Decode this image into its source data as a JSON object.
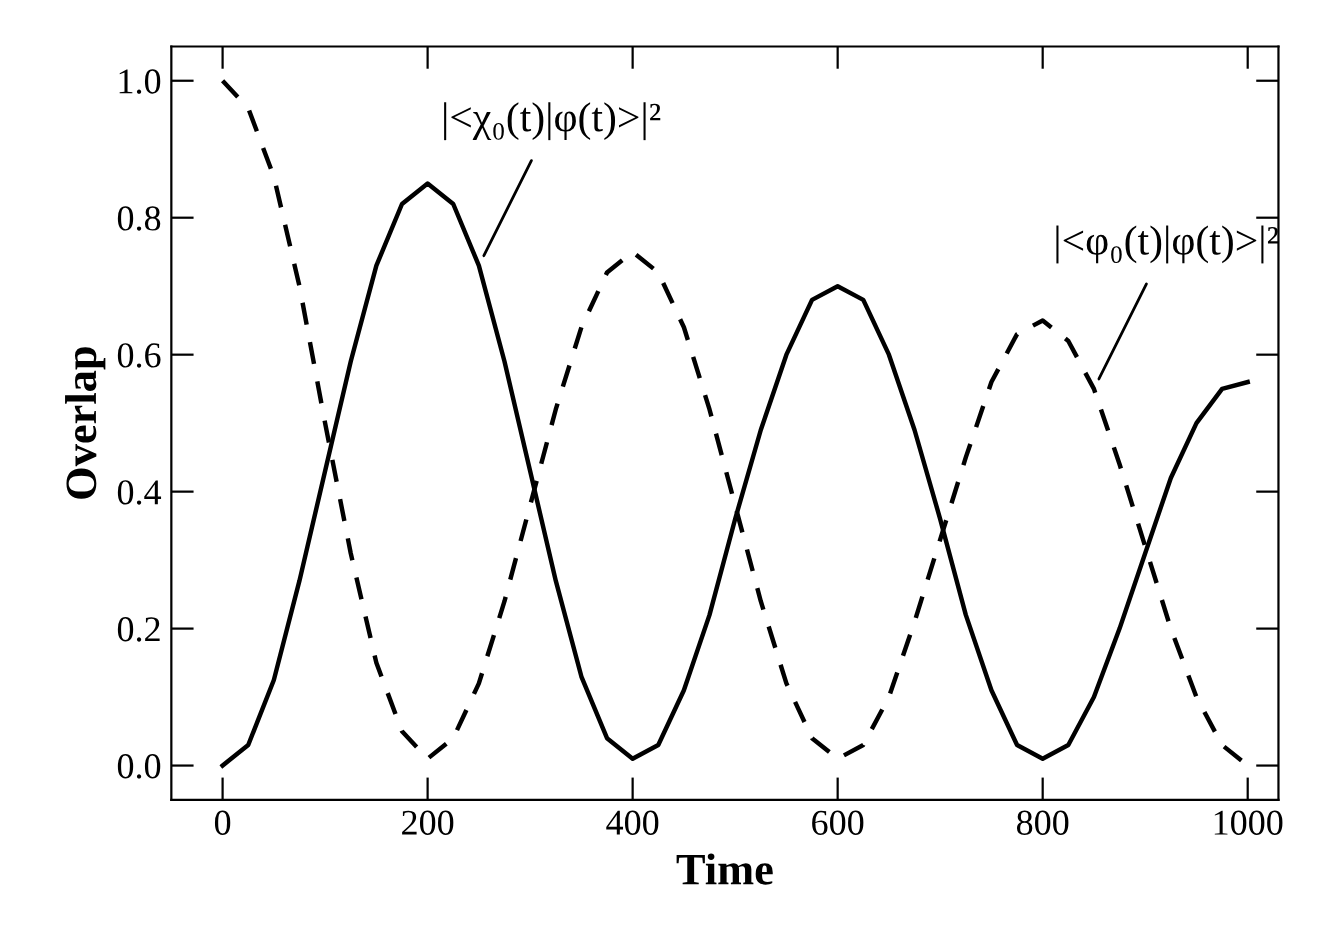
{
  "chart_data": {
    "type": "line",
    "xlabel": "Time",
    "ylabel": "Overlap",
    "xlim": [
      -50,
      1030
    ],
    "ylim": [
      -0.05,
      1.05
    ],
    "xticks": [
      0,
      200,
      400,
      600,
      800,
      1000
    ],
    "yticks": [
      {
        "value": 0,
        "label": "0.0"
      },
      {
        "value": 0.2,
        "label": "0.2"
      },
      {
        "value": 0.4,
        "label": "0.4"
      },
      {
        "value": 0.6,
        "label": "0.6"
      },
      {
        "value": 0.8,
        "label": "0.8"
      },
      {
        "value": 1,
        "label": "1.0"
      }
    ],
    "grid": false,
    "legend": false,
    "marker": "none",
    "series": [
      {
        "color": "#000000",
        "line_style": "solid",
        "x": [
          0,
          25,
          50,
          75,
          100,
          125,
          150,
          175,
          200,
          225,
          250,
          275,
          300,
          325,
          350,
          375,
          400,
          425,
          450,
          475,
          500,
          525,
          550,
          575,
          600,
          625,
          650,
          675,
          700,
          725,
          750,
          775,
          800,
          825,
          850,
          875,
          900,
          925,
          950,
          975,
          1000
        ],
        "values": [
          0.0,
          0.03,
          0.125,
          0.27,
          0.43,
          0.59,
          0.73,
          0.82,
          0.85,
          0.82,
          0.73,
          0.59,
          0.43,
          0.27,
          0.13,
          0.04,
          0.01,
          0.03,
          0.11,
          0.22,
          0.36,
          0.49,
          0.6,
          0.68,
          0.7,
          0.68,
          0.6,
          0.49,
          0.36,
          0.22,
          0.11,
          0.03,
          0.01,
          0.03,
          0.1,
          0.2,
          0.31,
          0.42,
          0.5,
          0.55,
          0.56
        ]
      },
      {
        "color": "#000000",
        "line_style": "dashed",
        "x": [
          0,
          25,
          50,
          75,
          100,
          125,
          150,
          175,
          200,
          225,
          250,
          275,
          300,
          325,
          350,
          375,
          400,
          425,
          450,
          475,
          500,
          525,
          550,
          575,
          600,
          625,
          650,
          675,
          700,
          725,
          750,
          775,
          800,
          825,
          850,
          875,
          900,
          925,
          950,
          975,
          1000
        ],
        "values": [
          1.0,
          0.96,
          0.86,
          0.7,
          0.5,
          0.31,
          0.15,
          0.05,
          0.01,
          0.04,
          0.12,
          0.24,
          0.38,
          0.52,
          0.64,
          0.72,
          0.75,
          0.72,
          0.64,
          0.52,
          0.38,
          0.24,
          0.12,
          0.04,
          0.01,
          0.03,
          0.1,
          0.21,
          0.33,
          0.45,
          0.56,
          0.63,
          0.65,
          0.62,
          0.55,
          0.44,
          0.32,
          0.2,
          0.1,
          0.03,
          0.0
        ]
      }
    ],
    "annotations": [
      {
        "text": "|<χ₀(t)|φ(t)>|²",
        "x": 250,
        "y": 0.73
      },
      {
        "text": "|<φ₀(t)|φ(t)>|²",
        "x": 850,
        "y": 0.55
      }
    ]
  }
}
